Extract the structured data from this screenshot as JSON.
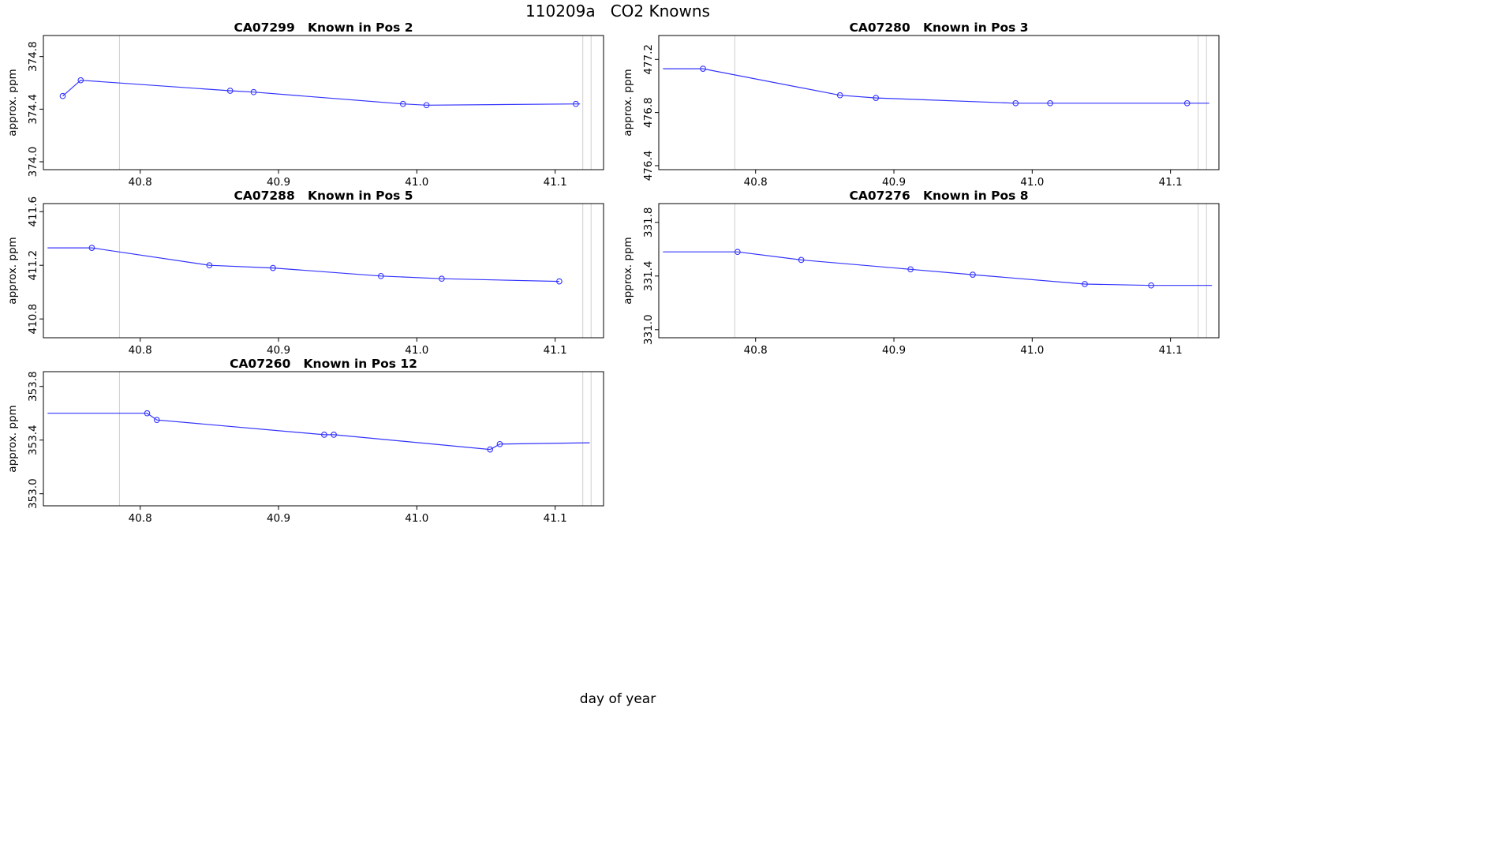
{
  "page_title": "110209a   CO2 Knowns",
  "xlabel": "day of year",
  "colors": {
    "line": "#3333ff",
    "point": "#3333ff",
    "ref_line": "#cfcfcf",
    "axis": "#000000",
    "background": "#ffffff"
  },
  "chart_data": [
    {
      "type": "line",
      "title": "CA07299   Known in Pos 2",
      "sample_id": "CA07299",
      "position_label": "Known in Pos 2",
      "ylabel": "approx. ppm",
      "xlabel": "day of year",
      "xlim": [
        40.73,
        41.135
      ],
      "ylim": [
        373.94,
        374.96
      ],
      "xticks": [
        40.8,
        40.9,
        41.0,
        41.1
      ],
      "yticks": [
        374.0,
        374.4,
        374.8
      ],
      "ref_x": [
        40.785,
        41.12,
        41.126
      ],
      "grid": false,
      "line": {
        "x": [
          40.744,
          40.757,
          40.865,
          40.882,
          40.99,
          41.007,
          41.118
        ],
        "y": [
          374.5,
          374.62,
          374.54,
          374.53,
          374.44,
          374.43,
          374.44
        ]
      },
      "points": {
        "x": [
          40.744,
          40.757,
          40.865,
          40.882,
          40.99,
          41.007,
          41.115
        ],
        "y": [
          374.5,
          374.62,
          374.54,
          374.53,
          374.44,
          374.43,
          374.44
        ]
      }
    },
    {
      "type": "line",
      "title": "CA07280   Known in Pos 3",
      "sample_id": "CA07280",
      "position_label": "Known in Pos 3",
      "ylabel": "approx. ppm",
      "xlabel": "day of year",
      "xlim": [
        40.73,
        41.135
      ],
      "ylim": [
        476.37,
        477.38
      ],
      "xticks": [
        40.8,
        40.9,
        41.0,
        41.1
      ],
      "yticks": [
        476.4,
        476.8,
        477.2
      ],
      "ref_x": [
        40.785,
        41.12,
        41.126
      ],
      "grid": false,
      "line": {
        "x": [
          40.733,
          40.762,
          40.861,
          40.887,
          40.988,
          41.013,
          41.112,
          41.128
        ],
        "y": [
          477.13,
          477.13,
          476.93,
          476.91,
          476.87,
          476.87,
          476.87,
          476.87
        ]
      },
      "points": {
        "x": [
          40.762,
          40.861,
          40.887,
          40.988,
          41.013,
          41.112
        ],
        "y": [
          477.13,
          476.93,
          476.91,
          476.87,
          476.87,
          476.87
        ]
      }
    },
    {
      "type": "line",
      "title": "CA07288   Known in Pos 5",
      "sample_id": "CA07288",
      "position_label": "Known in Pos 5",
      "ylabel": "approx. ppm",
      "xlabel": "day of year",
      "xlim": [
        40.73,
        41.135
      ],
      "ylim": [
        410.66,
        411.66
      ],
      "xticks": [
        40.8,
        40.9,
        41.0,
        41.1
      ],
      "yticks": [
        410.8,
        411.2,
        411.6
      ],
      "ref_x": [
        40.785,
        41.12,
        41.126
      ],
      "grid": false,
      "line": {
        "x": [
          40.733,
          40.765,
          40.85,
          40.896,
          40.974,
          41.018,
          41.103
        ],
        "y": [
          411.33,
          411.33,
          411.2,
          411.18,
          411.12,
          411.1,
          411.08
        ]
      },
      "points": {
        "x": [
          40.765,
          40.85,
          40.896,
          40.974,
          41.018,
          41.103
        ],
        "y": [
          411.33,
          411.2,
          411.18,
          411.12,
          411.1,
          411.08
        ]
      }
    },
    {
      "type": "line",
      "title": "CA07276   Known in Pos 8",
      "sample_id": "CA07276",
      "position_label": "Known in Pos 8",
      "ylabel": "approx. ppm",
      "xlabel": "day of year",
      "xlim": [
        40.73,
        41.135
      ],
      "ylim": [
        330.94,
        331.94
      ],
      "xticks": [
        40.8,
        40.9,
        41.0,
        41.1
      ],
      "yticks": [
        331.0,
        331.4,
        331.8
      ],
      "ref_x": [
        40.785,
        41.12,
        41.126
      ],
      "grid": false,
      "line": {
        "x": [
          40.733,
          40.787,
          40.833,
          40.912,
          40.957,
          41.038,
          41.086,
          41.13
        ],
        "y": [
          331.58,
          331.58,
          331.52,
          331.45,
          331.41,
          331.34,
          331.33,
          331.33
        ]
      },
      "points": {
        "x": [
          40.787,
          40.833,
          40.912,
          40.957,
          41.038,
          41.086
        ],
        "y": [
          331.58,
          331.52,
          331.45,
          331.41,
          331.34,
          331.33
        ]
      }
    },
    {
      "type": "line",
      "title": "CA07260   Known in Pos 12",
      "sample_id": "CA07260",
      "position_label": "Known in Pos 12",
      "ylabel": "approx. ppm",
      "xlabel": "day of year",
      "xlim": [
        40.73,
        41.135
      ],
      "ylim": [
        352.91,
        353.91
      ],
      "xticks": [
        40.8,
        40.9,
        41.0,
        41.1
      ],
      "yticks": [
        353.0,
        353.4,
        353.8
      ],
      "ref_x": [
        40.785,
        41.12,
        41.126
      ],
      "grid": false,
      "line": {
        "x": [
          40.733,
          40.805,
          40.812,
          40.933,
          40.94,
          41.053,
          41.06,
          41.125
        ],
        "y": [
          353.6,
          353.6,
          353.55,
          353.44,
          353.44,
          353.33,
          353.37,
          353.38
        ]
      },
      "points": {
        "x": [
          40.805,
          40.812,
          40.933,
          40.94,
          41.053,
          41.06
        ],
        "y": [
          353.6,
          353.55,
          353.44,
          353.44,
          353.33,
          353.37
        ]
      }
    }
  ]
}
